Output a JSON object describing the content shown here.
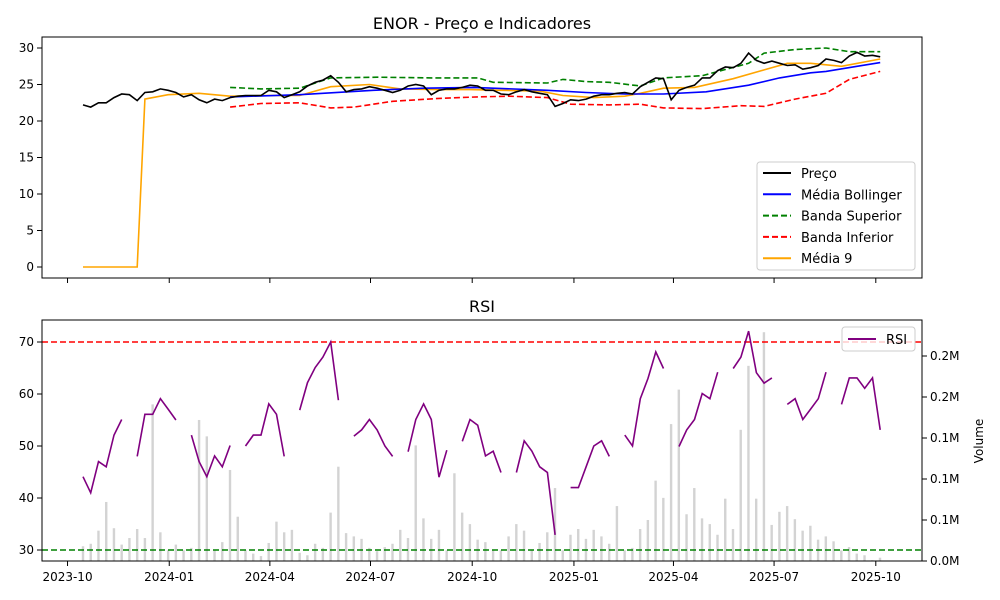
{
  "chart_data": [
    {
      "type": "line",
      "title": "ENOR - Preço e Indicadores",
      "xlabel": "",
      "ylabel": "",
      "ylim": [
        -1.5,
        31.5
      ],
      "yticks": [
        0,
        5,
        10,
        15,
        20,
        25,
        30
      ],
      "x_start_date": "2023-10-15",
      "x_step_days": 7,
      "legend_position": "lower-right",
      "colors": {
        "price": "#000000",
        "bollinger_mid": "#0000ff",
        "upper": "#008000",
        "lower": "#ff0000",
        "ma9": "#ffa500"
      },
      "legend": [
        "Preço",
        "Média Bollinger",
        "Banda Superior",
        "Banda Inferior",
        "Média 9"
      ],
      "price": [
        22.2,
        21.9,
        22.5,
        22.5,
        23.2,
        23.7,
        23.6,
        22.8,
        23.9,
        24.0,
        24.4,
        24.2,
        23.9,
        23.3,
        23.6,
        22.9,
        22.5,
        23.0,
        22.8,
        23.2,
        23.4,
        23.5,
        23.5,
        23.5,
        24.2,
        24.0,
        23.2,
        23.6,
        24.0,
        24.8,
        25.3,
        25.6,
        26.2,
        25.3,
        24.0,
        24.3,
        24.4,
        24.7,
        24.5,
        24.2,
        23.9,
        24.2,
        24.8,
        25.0,
        24.8,
        23.6,
        24.2,
        24.4,
        24.4,
        24.6,
        24.9,
        24.8,
        24.2,
        24.2,
        23.7,
        23.6,
        24.0,
        24.3,
        24.0,
        23.8,
        23.6,
        22.0,
        22.4,
        22.9,
        22.8,
        23.0,
        23.4,
        23.6,
        23.6,
        23.8,
        23.9,
        23.7,
        24.7,
        25.3,
        25.9,
        25.8,
        22.9,
        24.2,
        24.6,
        24.9,
        25.9,
        25.9,
        26.9,
        27.4,
        27.3,
        27.9,
        29.3,
        28.3,
        27.9,
        28.2,
        27.9,
        27.6,
        27.7,
        27.1,
        27.3,
        27.6,
        28.5,
        28.3,
        28.0,
        28.9,
        29.4,
        28.9,
        29.0,
        28.8
      ],
      "bollinger_mid": [
        [
          19,
          23.3
        ],
        [
          28,
          23.6
        ],
        [
          37.5,
          24.2
        ],
        [
          44,
          24.5
        ],
        [
          50.5,
          24.6
        ],
        [
          60,
          24.2
        ],
        [
          65,
          23.9
        ],
        [
          70,
          23.7
        ],
        [
          75,
          23.7
        ],
        [
          80.5,
          24.0
        ],
        [
          86,
          24.9
        ],
        [
          90,
          25.9
        ],
        [
          94,
          26.6
        ],
        [
          96,
          26.8
        ],
        [
          100,
          27.5
        ],
        [
          103,
          28.0
        ]
      ],
      "upper": [
        [
          19,
          24.6
        ],
        [
          23,
          24.4
        ],
        [
          28,
          24.5
        ],
        [
          32,
          25.9
        ],
        [
          38,
          26.0
        ],
        [
          45,
          25.9
        ],
        [
          51,
          25.9
        ],
        [
          53,
          25.3
        ],
        [
          60,
          25.2
        ],
        [
          62,
          25.7
        ],
        [
          65,
          25.4
        ],
        [
          68,
          25.3
        ],
        [
          72,
          24.8
        ],
        [
          75,
          25.9
        ],
        [
          80,
          26.2
        ],
        [
          86,
          27.9
        ],
        [
          88,
          29.3
        ],
        [
          92,
          29.8
        ],
        [
          96,
          30.0
        ],
        [
          99,
          29.5
        ],
        [
          103,
          29.5
        ]
      ],
      "lower": [
        [
          19,
          21.9
        ],
        [
          23,
          22.4
        ],
        [
          28,
          22.5
        ],
        [
          32,
          21.8
        ],
        [
          35,
          21.9
        ],
        [
          40,
          22.7
        ],
        [
          46,
          23.1
        ],
        [
          51,
          23.3
        ],
        [
          55,
          23.4
        ],
        [
          60,
          23.2
        ],
        [
          63,
          22.3
        ],
        [
          68,
          22.2
        ],
        [
          72,
          22.3
        ],
        [
          75,
          21.8
        ],
        [
          80,
          21.7
        ],
        [
          85,
          22.1
        ],
        [
          88,
          22.0
        ],
        [
          92,
          23.0
        ],
        [
          96,
          23.8
        ],
        [
          99,
          25.7
        ],
        [
          103,
          26.8
        ]
      ],
      "ma9": [
        [
          0,
          0
        ],
        [
          7,
          0
        ],
        [
          8,
          23.0
        ],
        [
          11,
          23.6
        ],
        [
          15,
          23.8
        ],
        [
          19,
          23.4
        ],
        [
          24,
          23.5
        ],
        [
          28,
          23.5
        ],
        [
          32,
          24.7
        ],
        [
          37,
          25.0
        ],
        [
          41,
          24.4
        ],
        [
          46,
          24.3
        ],
        [
          50,
          24.3
        ],
        [
          54,
          24.2
        ],
        [
          59,
          24.1
        ],
        [
          62,
          23.5
        ],
        [
          66,
          23.2
        ],
        [
          70,
          23.4
        ],
        [
          72,
          23.8
        ],
        [
          75,
          24.5
        ],
        [
          79,
          24.6
        ],
        [
          84,
          25.8
        ],
        [
          88,
          27.0
        ],
        [
          91,
          27.9
        ],
        [
          94,
          27.9
        ],
        [
          98,
          27.5
        ],
        [
          103,
          28.5
        ]
      ]
    },
    {
      "type": "line",
      "title": "RSI",
      "ylabel": "",
      "y2label": "Volume",
      "ylim": [
        28,
        74
      ],
      "yticks": [
        30,
        40,
        50,
        60,
        70
      ],
      "overbought": 70,
      "oversold": 30,
      "x_start_date": "2023-10-15",
      "x_step_days": 7,
      "xticks": [
        "2023-10",
        "2024-01",
        "2024-04",
        "2024-07",
        "2024-10",
        "2025-01",
        "2025-04",
        "2025-07",
        "2025-10"
      ],
      "legend": [
        "RSI"
      ],
      "legend_position": "upper-right",
      "colors": {
        "rsi": "#800080",
        "overbought": "#ff0000",
        "oversold": "#008000",
        "volume": "#d3d3d3"
      },
      "rsi": [
        44.1,
        41.0,
        47.0,
        46.0,
        52.1,
        55.1,
        null,
        48.0,
        56.1,
        56.1,
        59.1,
        57.1,
        55.0,
        null,
        52.1,
        47.0,
        44.1,
        48.1,
        46.0,
        50.1,
        null,
        50.0,
        52.1,
        52.1,
        58.1,
        56.1,
        48.0,
        null,
        56.9,
        62.2,
        65.1,
        67.1,
        70.0,
        58.8,
        null,
        51.9,
        53.1,
        55.1,
        53.1,
        50.0,
        48.0,
        null,
        48.9,
        55.1,
        58.1,
        55.1,
        44.0,
        49.2,
        null,
        50.9,
        55.1,
        54.0,
        48.1,
        49.0,
        44.9,
        null,
        44.9,
        51.0,
        49.0,
        46.0,
        44.9,
        32.9,
        null,
        42.0,
        42.0,
        46.0,
        50.0,
        51.0,
        48.0,
        null,
        52.1,
        50.0,
        59.1,
        63.0,
        68.1,
        64.9,
        null,
        49.9,
        53.1,
        55.1,
        60.1,
        59.1,
        64.2,
        null,
        64.9,
        67.1,
        72.1,
        64.1,
        62.1,
        63.1,
        null,
        58.0,
        59.1,
        55.1,
        57.1,
        59.1,
        64.2,
        null,
        58.0,
        63.1,
        63.1,
        61.1,
        63.1,
        53.1
      ],
      "volume_ylim": [
        0,
        295000
      ],
      "volume_ticks": [
        {
          "v": 0,
          "label": "0.0M"
        },
        {
          "v": 50000,
          "label": "0.1M"
        },
        {
          "v": 100000,
          "label": "0.1M"
        },
        {
          "v": 150000,
          "label": "0.1M"
        },
        {
          "v": 200000,
          "label": "0.2M"
        },
        {
          "v": 250000,
          "label": "0.2M"
        }
      ],
      "volume": [
        18000,
        21000,
        37000,
        72000,
        40000,
        20000,
        28000,
        39000,
        28000,
        191000,
        35000,
        13000,
        20000,
        13000,
        16000,
        172000,
        152000,
        13000,
        23000,
        111000,
        54000,
        13000,
        9000,
        6000,
        22000,
        48000,
        35000,
        38000,
        10000,
        7000,
        21000,
        16000,
        59000,
        115000,
        34000,
        30000,
        27000,
        16000,
        12000,
        17000,
        21000,
        38000,
        28000,
        141000,
        52000,
        27000,
        38000,
        13000,
        107000,
        59000,
        45000,
        26000,
        23000,
        13000,
        13000,
        30000,
        45000,
        37000,
        13000,
        22000,
        35000,
        89000,
        13000,
        32000,
        39000,
        27000,
        38000,
        30000,
        21000,
        67000,
        13000,
        16000,
        39000,
        50000,
        98000,
        77000,
        167000,
        209000,
        57000,
        89000,
        52000,
        45000,
        32000,
        76000,
        39000,
        160000,
        238000,
        76000,
        279000,
        44000,
        60000,
        67000,
        51000,
        37000,
        43000,
        26000,
        30000,
        24000,
        13000,
        17000,
        9000,
        7000,
        1000,
        4000
      ]
    }
  ]
}
